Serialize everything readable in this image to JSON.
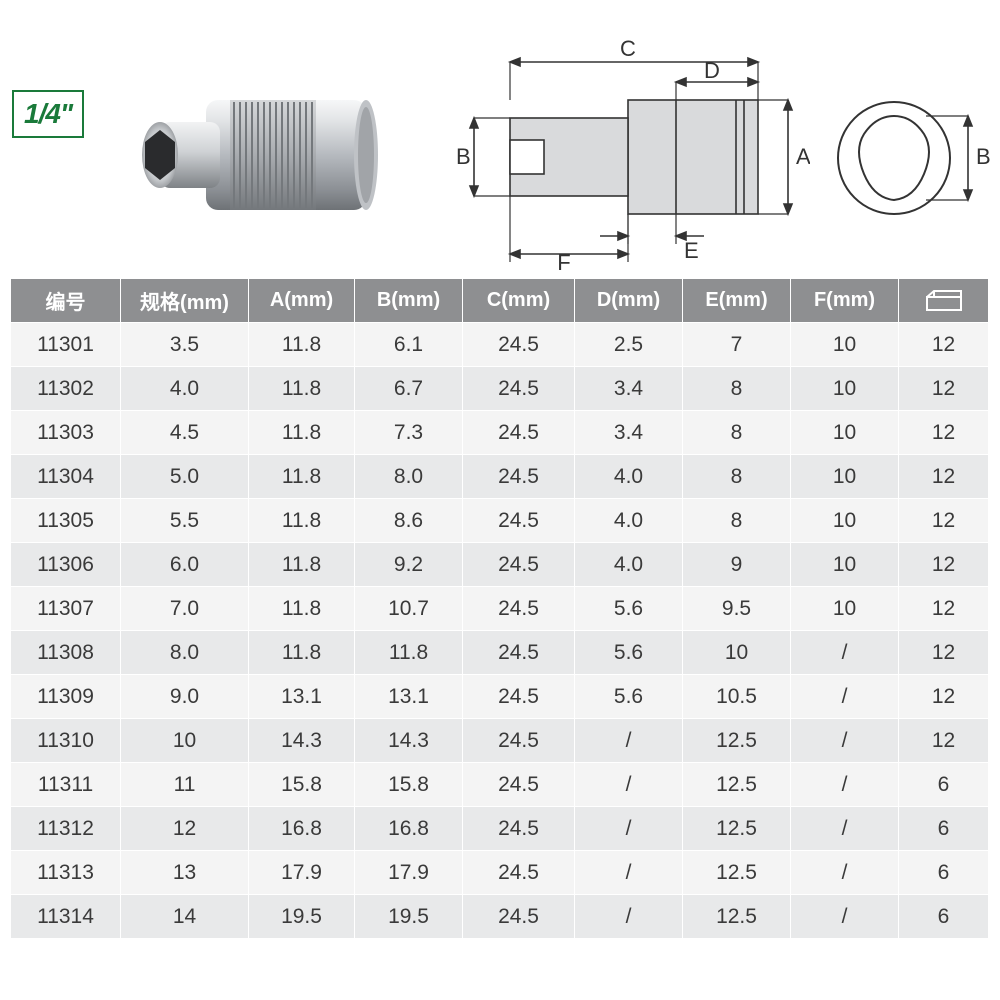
{
  "badge": {
    "label": "1/4\""
  },
  "diagram": {
    "labels": {
      "A": "A",
      "B": "B",
      "C": "C",
      "D": "D",
      "E": "E",
      "F": "F"
    },
    "colors": {
      "line": "#333333",
      "socket_body": "#d9dadc",
      "socket_shadow": "#a9abae",
      "socket_highlight": "#f2f3f4",
      "hex_stroke": "#333333",
      "badge_border": "#1a7a3a",
      "badge_text": "#1a7a3a"
    }
  },
  "photo": {
    "colors": {
      "chrome_light": "#eef0f2",
      "chrome_mid": "#bfc3c7",
      "chrome_dark": "#7e8286",
      "knurl": "#9ea2a6",
      "cavity": "#2a2b2d"
    }
  },
  "table": {
    "header_bg": "#8e8f91",
    "header_fg": "#ffffff",
    "row_odd_bg": "#f4f4f4",
    "row_even_bg": "#e8e9ea",
    "columns": [
      {
        "key": "id",
        "label": "编号"
      },
      {
        "key": "spec",
        "label": "规格(mm)"
      },
      {
        "key": "A",
        "label": "A(mm)"
      },
      {
        "key": "B",
        "label": "B(mm)"
      },
      {
        "key": "C",
        "label": "C(mm)"
      },
      {
        "key": "D",
        "label": "D(mm)"
      },
      {
        "key": "E",
        "label": "E(mm)"
      },
      {
        "key": "F",
        "label": "F(mm)"
      },
      {
        "key": "box",
        "label": "",
        "icon": true
      }
    ],
    "rows": [
      {
        "id": "11301",
        "spec": "3.5",
        "A": "11.8",
        "B": "6.1",
        "C": "24.5",
        "D": "2.5",
        "E": "7",
        "F": "10",
        "box": "12"
      },
      {
        "id": "11302",
        "spec": "4.0",
        "A": "11.8",
        "B": "6.7",
        "C": "24.5",
        "D": "3.4",
        "E": "8",
        "F": "10",
        "box": "12"
      },
      {
        "id": "11303",
        "spec": "4.5",
        "A": "11.8",
        "B": "7.3",
        "C": "24.5",
        "D": "3.4",
        "E": "8",
        "F": "10",
        "box": "12"
      },
      {
        "id": "11304",
        "spec": "5.0",
        "A": "11.8",
        "B": "8.0",
        "C": "24.5",
        "D": "4.0",
        "E": "8",
        "F": "10",
        "box": "12"
      },
      {
        "id": "11305",
        "spec": "5.5",
        "A": "11.8",
        "B": "8.6",
        "C": "24.5",
        "D": "4.0",
        "E": "8",
        "F": "10",
        "box": "12"
      },
      {
        "id": "11306",
        "spec": "6.0",
        "A": "11.8",
        "B": "9.2",
        "C": "24.5",
        "D": "4.0",
        "E": "9",
        "F": "10",
        "box": "12"
      },
      {
        "id": "11307",
        "spec": "7.0",
        "A": "11.8",
        "B": "10.7",
        "C": "24.5",
        "D": "5.6",
        "E": "9.5",
        "F": "10",
        "box": "12"
      },
      {
        "id": "11308",
        "spec": "8.0",
        "A": "11.8",
        "B": "11.8",
        "C": "24.5",
        "D": "5.6",
        "E": "10",
        "F": "/",
        "box": "12"
      },
      {
        "id": "11309",
        "spec": "9.0",
        "A": "13.1",
        "B": "13.1",
        "C": "24.5",
        "D": "5.6",
        "E": "10.5",
        "F": "/",
        "box": "12"
      },
      {
        "id": "11310",
        "spec": "10",
        "A": "14.3",
        "B": "14.3",
        "C": "24.5",
        "D": "/",
        "E": "12.5",
        "F": "/",
        "box": "12"
      },
      {
        "id": "11311",
        "spec": "11",
        "A": "15.8",
        "B": "15.8",
        "C": "24.5",
        "D": "/",
        "E": "12.5",
        "F": "/",
        "box": "6"
      },
      {
        "id": "11312",
        "spec": "12",
        "A": "16.8",
        "B": "16.8",
        "C": "24.5",
        "D": "/",
        "E": "12.5",
        "F": "/",
        "box": "6"
      },
      {
        "id": "11313",
        "spec": "13",
        "A": "17.9",
        "B": "17.9",
        "C": "24.5",
        "D": "/",
        "E": "12.5",
        "F": "/",
        "box": "6"
      },
      {
        "id": "11314",
        "spec": "14",
        "A": "19.5",
        "B": "19.5",
        "C": "24.5",
        "D": "/",
        "E": "12.5",
        "F": "/",
        "box": "6"
      }
    ]
  }
}
